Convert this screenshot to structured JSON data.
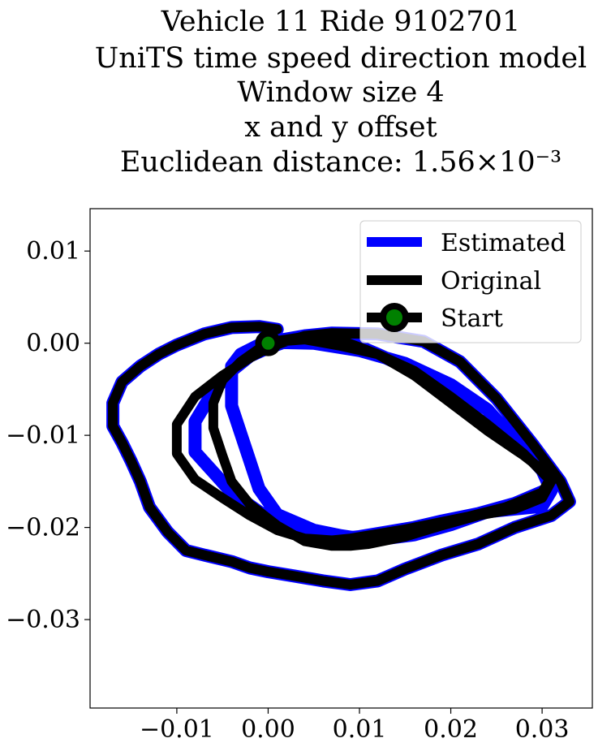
{
  "chart_data": {
    "type": "line",
    "title_lines": [
      "Vehicle 11 Ride 9102701",
      "UniTS time speed direction model",
      "Window size 4",
      "x and y offset",
      "Euclidean distance: 1.56×10⁻³"
    ],
    "xlabel": "",
    "ylabel": "",
    "xlim": [
      -0.0195,
      0.0355
    ],
    "ylim": [
      -0.0396,
      0.0146
    ],
    "x_ticks": [
      -0.01,
      0.0,
      0.01,
      0.02,
      0.03
    ],
    "x_tick_labels": [
      "−0.01",
      "0.00",
      "0.01",
      "0.02",
      "0.03"
    ],
    "y_ticks": [
      0.01,
      0.0,
      -0.01,
      -0.02,
      -0.03
    ],
    "y_tick_labels": [
      "0.01",
      "0.00",
      "−0.01",
      "−0.02",
      "−0.03"
    ],
    "grid": false,
    "legend_position": "top-right",
    "series": [
      {
        "name": "Estimated",
        "color": "#0000ff",
        "x": [
          0.0,
          0.005,
          0.01,
          0.015,
          0.02,
          0.024,
          0.027,
          0.03,
          0.031,
          0.03,
          0.027,
          0.024,
          0.02,
          0.016,
          0.012,
          0.01,
          0.008,
          0.005,
          0.001,
          -0.001,
          -0.002,
          -0.003,
          -0.004,
          -0.004,
          -0.004,
          -0.003,
          -0.001,
          0.0,
          0.004,
          0.008,
          0.012,
          0.016,
          0.02,
          0.024,
          0.028,
          0.031,
          0.031,
          0.027,
          0.023,
          0.019,
          0.016,
          0.013,
          0.01,
          0.008,
          0.005,
          0.002,
          -0.001,
          -0.004,
          -0.006,
          -0.008,
          -0.008,
          -0.006,
          -0.004,
          -0.002,
          0.0,
          0.002,
          0.004,
          0.007,
          0.012,
          0.017,
          0.021,
          0.025,
          0.029,
          0.032,
          0.033,
          0.031,
          0.027,
          0.023,
          0.019,
          0.015,
          0.012,
          0.009,
          0.006,
          0.003,
          0.0,
          -0.002,
          -0.004,
          -0.007,
          -0.009,
          -0.011,
          -0.013,
          -0.014,
          -0.015,
          -0.016,
          -0.017,
          -0.017,
          -0.016,
          -0.014,
          -0.012,
          -0.01,
          -0.007,
          -0.004,
          -0.001,
          0.001
        ],
        "y": [
          0.0001,
          0.0,
          -0.0008,
          -0.0022,
          -0.0045,
          -0.0072,
          -0.0105,
          -0.0138,
          -0.016,
          -0.0177,
          -0.018,
          -0.0183,
          -0.0197,
          -0.0208,
          -0.0213,
          -0.0212,
          -0.0209,
          -0.0203,
          -0.0186,
          -0.0158,
          -0.0128,
          -0.0098,
          -0.0068,
          -0.0045,
          -0.0025,
          -0.0012,
          -0.0002,
          0.0001,
          0.0008,
          0.0005,
          -0.0012,
          -0.003,
          -0.006,
          -0.009,
          -0.0117,
          -0.0138,
          -0.0157,
          -0.0174,
          -0.0185,
          -0.0193,
          -0.02,
          -0.0205,
          -0.021,
          -0.0212,
          -0.021,
          -0.02,
          -0.0183,
          -0.0162,
          -0.014,
          -0.0118,
          -0.0085,
          -0.0052,
          -0.003,
          -0.0014,
          -0.0005,
          0.0002,
          0.0008,
          0.0011,
          0.001,
          0.0002,
          -0.002,
          -0.006,
          -0.011,
          -0.015,
          -0.0172,
          -0.0187,
          -0.02,
          -0.0218,
          -0.023,
          -0.0245,
          -0.0258,
          -0.0262,
          -0.0258,
          -0.0253,
          -0.0248,
          -0.0244,
          -0.0237,
          -0.023,
          -0.0225,
          -0.0205,
          -0.0178,
          -0.015,
          -0.0128,
          -0.0108,
          -0.009,
          -0.0065,
          -0.0042,
          -0.0025,
          -0.0012,
          -0.0002,
          0.001,
          0.0017,
          0.0018,
          0.0015
        ]
      },
      {
        "name": "Original",
        "color": "#000000",
        "x": [
          0.0,
          0.004,
          0.008,
          0.012,
          0.016,
          0.02,
          0.024,
          0.028,
          0.031,
          0.03,
          0.027,
          0.023,
          0.019,
          0.015,
          0.011,
          0.009,
          0.007,
          0.004,
          0.001,
          -0.002,
          -0.004,
          -0.005,
          -0.006,
          -0.006,
          -0.005,
          -0.003,
          -0.001,
          0.0,
          0.004,
          0.008,
          0.012,
          0.016,
          0.02,
          0.024,
          0.028,
          0.031,
          0.03,
          0.026,
          0.022,
          0.018,
          0.015,
          0.012,
          0.009,
          0.007,
          0.004,
          0.001,
          -0.002,
          -0.005,
          -0.008,
          -0.01,
          -0.01,
          -0.008,
          -0.005,
          -0.002,
          0.0,
          0.002,
          0.004,
          0.007,
          0.012,
          0.017,
          0.021,
          0.025,
          0.029,
          0.032,
          0.033,
          0.031,
          0.027,
          0.023,
          0.019,
          0.015,
          0.012,
          0.009,
          0.006,
          0.003,
          0.0,
          -0.002,
          -0.004,
          -0.007,
          -0.009,
          -0.011,
          -0.013,
          -0.014,
          -0.015,
          -0.016,
          -0.017,
          -0.017,
          -0.016,
          -0.014,
          -0.012,
          -0.01,
          -0.007,
          -0.004,
          -0.001,
          0.001
        ],
        "y": [
          0.0001,
          0.0004,
          -0.0003,
          -0.0012,
          -0.003,
          -0.0058,
          -0.0088,
          -0.012,
          -0.015,
          -0.0168,
          -0.018,
          -0.0187,
          -0.0198,
          -0.021,
          -0.0218,
          -0.022,
          -0.022,
          -0.0215,
          -0.0198,
          -0.0175,
          -0.015,
          -0.0122,
          -0.0092,
          -0.0065,
          -0.004,
          -0.002,
          -0.0006,
          0.0001,
          0.0007,
          0.0003,
          -0.0012,
          -0.0035,
          -0.0065,
          -0.0095,
          -0.0122,
          -0.0145,
          -0.0162,
          -0.0178,
          -0.0188,
          -0.0196,
          -0.0202,
          -0.0207,
          -0.0212,
          -0.0214,
          -0.0212,
          -0.0203,
          -0.0187,
          -0.0168,
          -0.0148,
          -0.012,
          -0.0088,
          -0.0058,
          -0.0035,
          -0.0016,
          -0.0005,
          0.0002,
          0.0008,
          0.0011,
          0.001,
          0.0002,
          -0.002,
          -0.006,
          -0.011,
          -0.015,
          -0.0172,
          -0.0187,
          -0.02,
          -0.0218,
          -0.023,
          -0.0245,
          -0.0258,
          -0.0262,
          -0.0258,
          -0.0253,
          -0.0248,
          -0.0244,
          -0.0237,
          -0.023,
          -0.0225,
          -0.0205,
          -0.0178,
          -0.015,
          -0.0128,
          -0.0108,
          -0.009,
          -0.0065,
          -0.0042,
          -0.0025,
          -0.0012,
          -0.0002,
          0.001,
          0.0017,
          0.0018,
          0.0015
        ]
      }
    ],
    "start": {
      "name": "Start",
      "x": 0.0,
      "y": 0.0,
      "marker_color": "#008000",
      "edge_color": "#000000"
    }
  }
}
